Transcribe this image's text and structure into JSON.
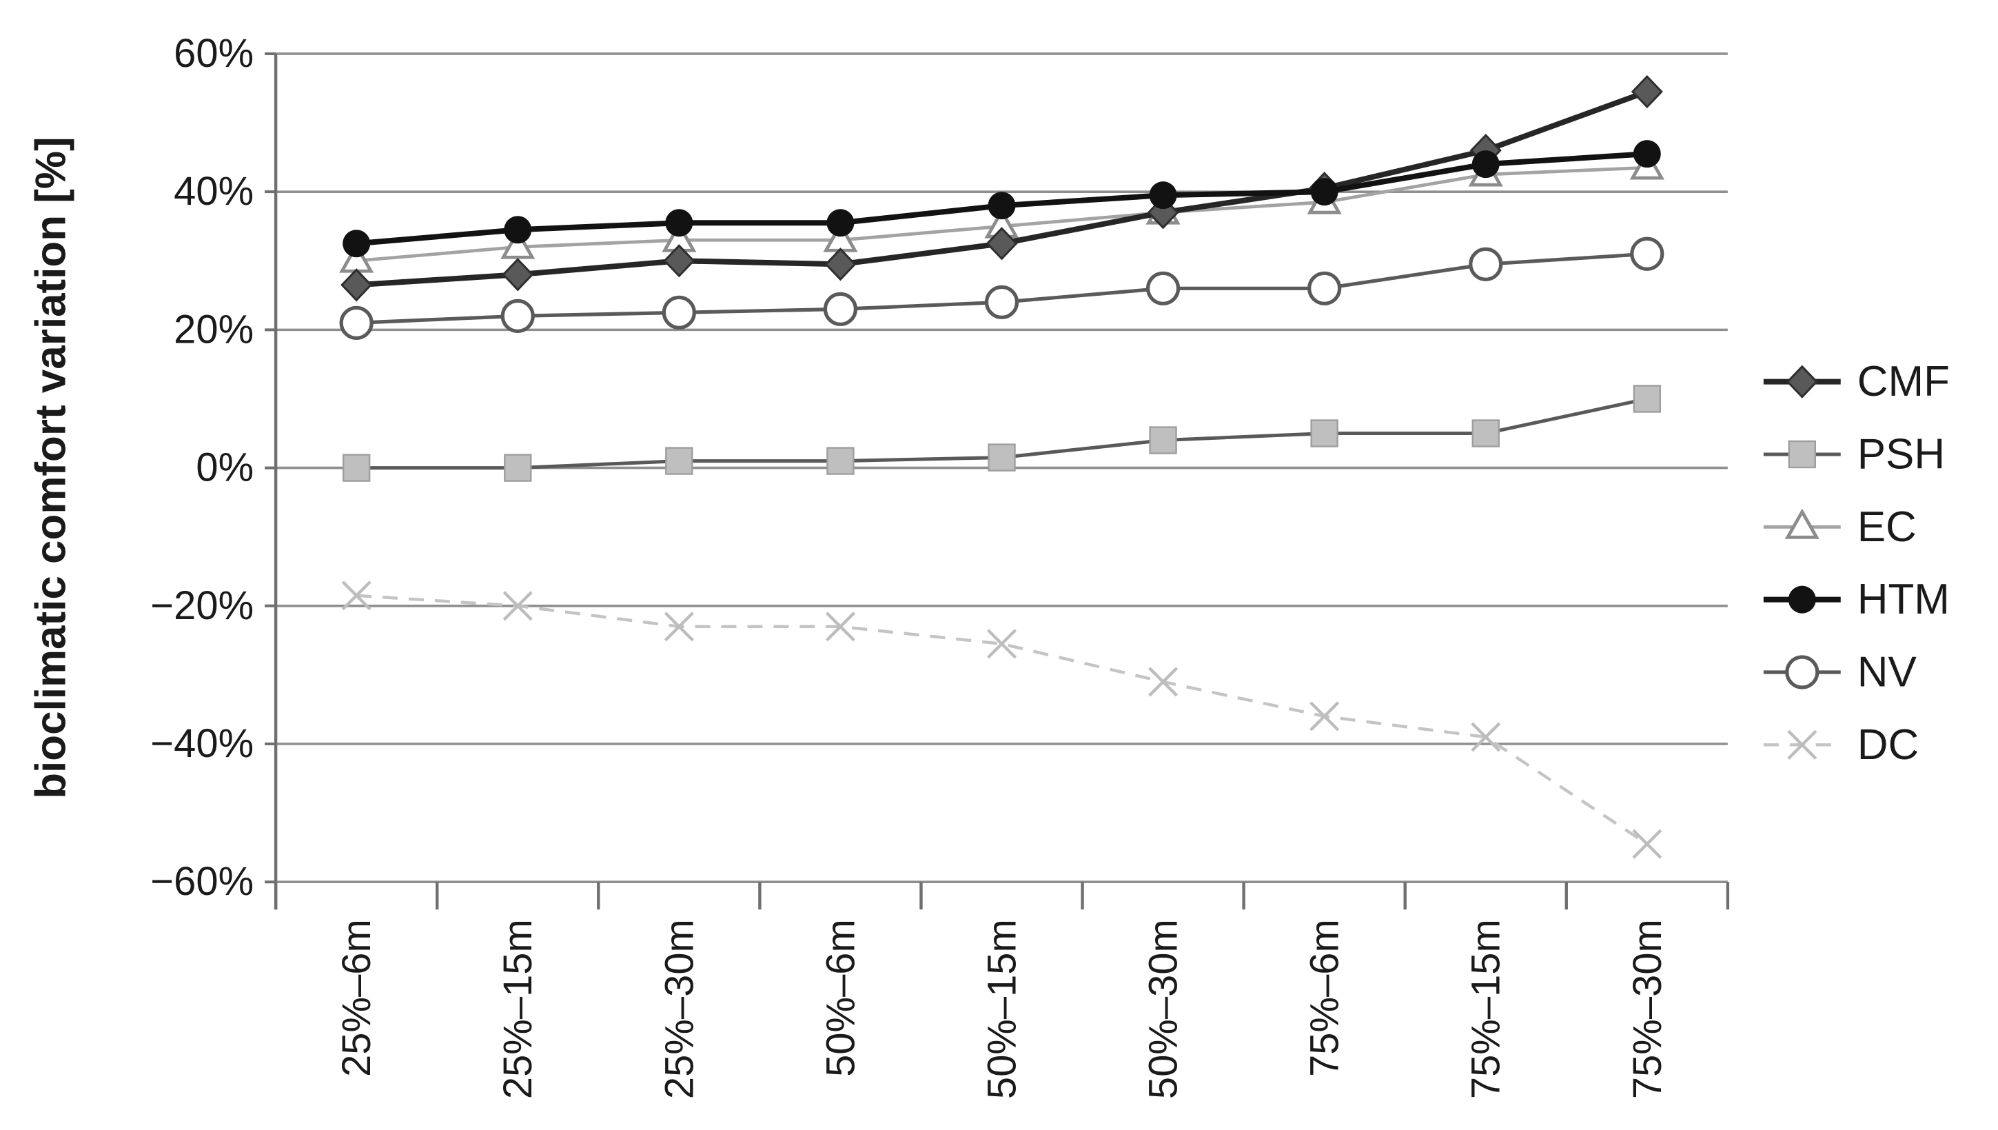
{
  "chart_data": {
    "type": "line",
    "title": "",
    "xlabel": "",
    "ylabel": "bioclimatic comfort variation [%]",
    "categories": [
      "25%–6m",
      "25%–15m",
      "25%–30m",
      "50%–6m",
      "50%–15m",
      "50%–30m",
      "75%–6m",
      "75%–15m",
      "75%–30m"
    ],
    "series": [
      {
        "name": "CMF",
        "marker": "filled-diamond",
        "line_style": "solid",
        "line_color": "#262626",
        "marker_color": "#595959",
        "marker_stroke": "#2e2e2e",
        "line_width": 4,
        "values": [
          26.5,
          28,
          30,
          29.5,
          32.5,
          37,
          40.5,
          46,
          54.5
        ]
      },
      {
        "name": "PSH",
        "marker": "filled-square",
        "line_style": "solid",
        "line_color": "#595959",
        "marker_color": "#bfbfbf",
        "marker_stroke": "#9e9e9e",
        "line_width": 2.5,
        "values": [
          0,
          0,
          1,
          1,
          1.5,
          4,
          5,
          5,
          10
        ]
      },
      {
        "name": "EC",
        "marker": "open-triangle",
        "line_style": "solid",
        "line_color": "#a3a3a3",
        "marker_color": "#ffffff",
        "marker_stroke": "#8c8c8c",
        "line_width": 2.4,
        "values": [
          30,
          32,
          33,
          33,
          35,
          37,
          38.5,
          42.5,
          43.5
        ]
      },
      {
        "name": "HTM",
        "marker": "filled-circle",
        "line_style": "solid",
        "line_color": "#121212",
        "marker_color": "#121212",
        "marker_stroke": "#121212",
        "line_width": 4,
        "values": [
          32.5,
          34.5,
          35.5,
          35.5,
          38,
          39.5,
          40,
          44,
          45.5
        ]
      },
      {
        "name": "NV",
        "marker": "open-circle",
        "line_style": "solid",
        "line_color": "#5a5a5a",
        "marker_color": "#ffffff",
        "marker_stroke": "#5a5a5a",
        "line_width": 2.6,
        "values": [
          21,
          22,
          22.5,
          23,
          24,
          26,
          26,
          29.5,
          31
        ]
      },
      {
        "name": "DC",
        "marker": "x-cross",
        "line_style": "dashed",
        "line_color": "#c4c4c4",
        "marker_color": "#bdbdbd",
        "marker_stroke": "#bdbdbd",
        "line_width": 2.2,
        "values": [
          -18.5,
          -20,
          -23,
          -23,
          -25.5,
          -31,
          -36,
          -39,
          -54.5
        ]
      }
    ],
    "y_ticks": [
      "60%",
      "40%",
      "20%",
      "0%",
      "−20%",
      "−40%",
      "−60%"
    ],
    "y_tick_values": [
      60,
      40,
      20,
      0,
      -20,
      -40,
      -60
    ],
    "ylim": [
      -60,
      60
    ],
    "grid": "horizontal",
    "grid_color": "#8f8f8f",
    "axis_color": "#6f6f6f",
    "legend_position": "right",
    "background": "#ffffff"
  }
}
